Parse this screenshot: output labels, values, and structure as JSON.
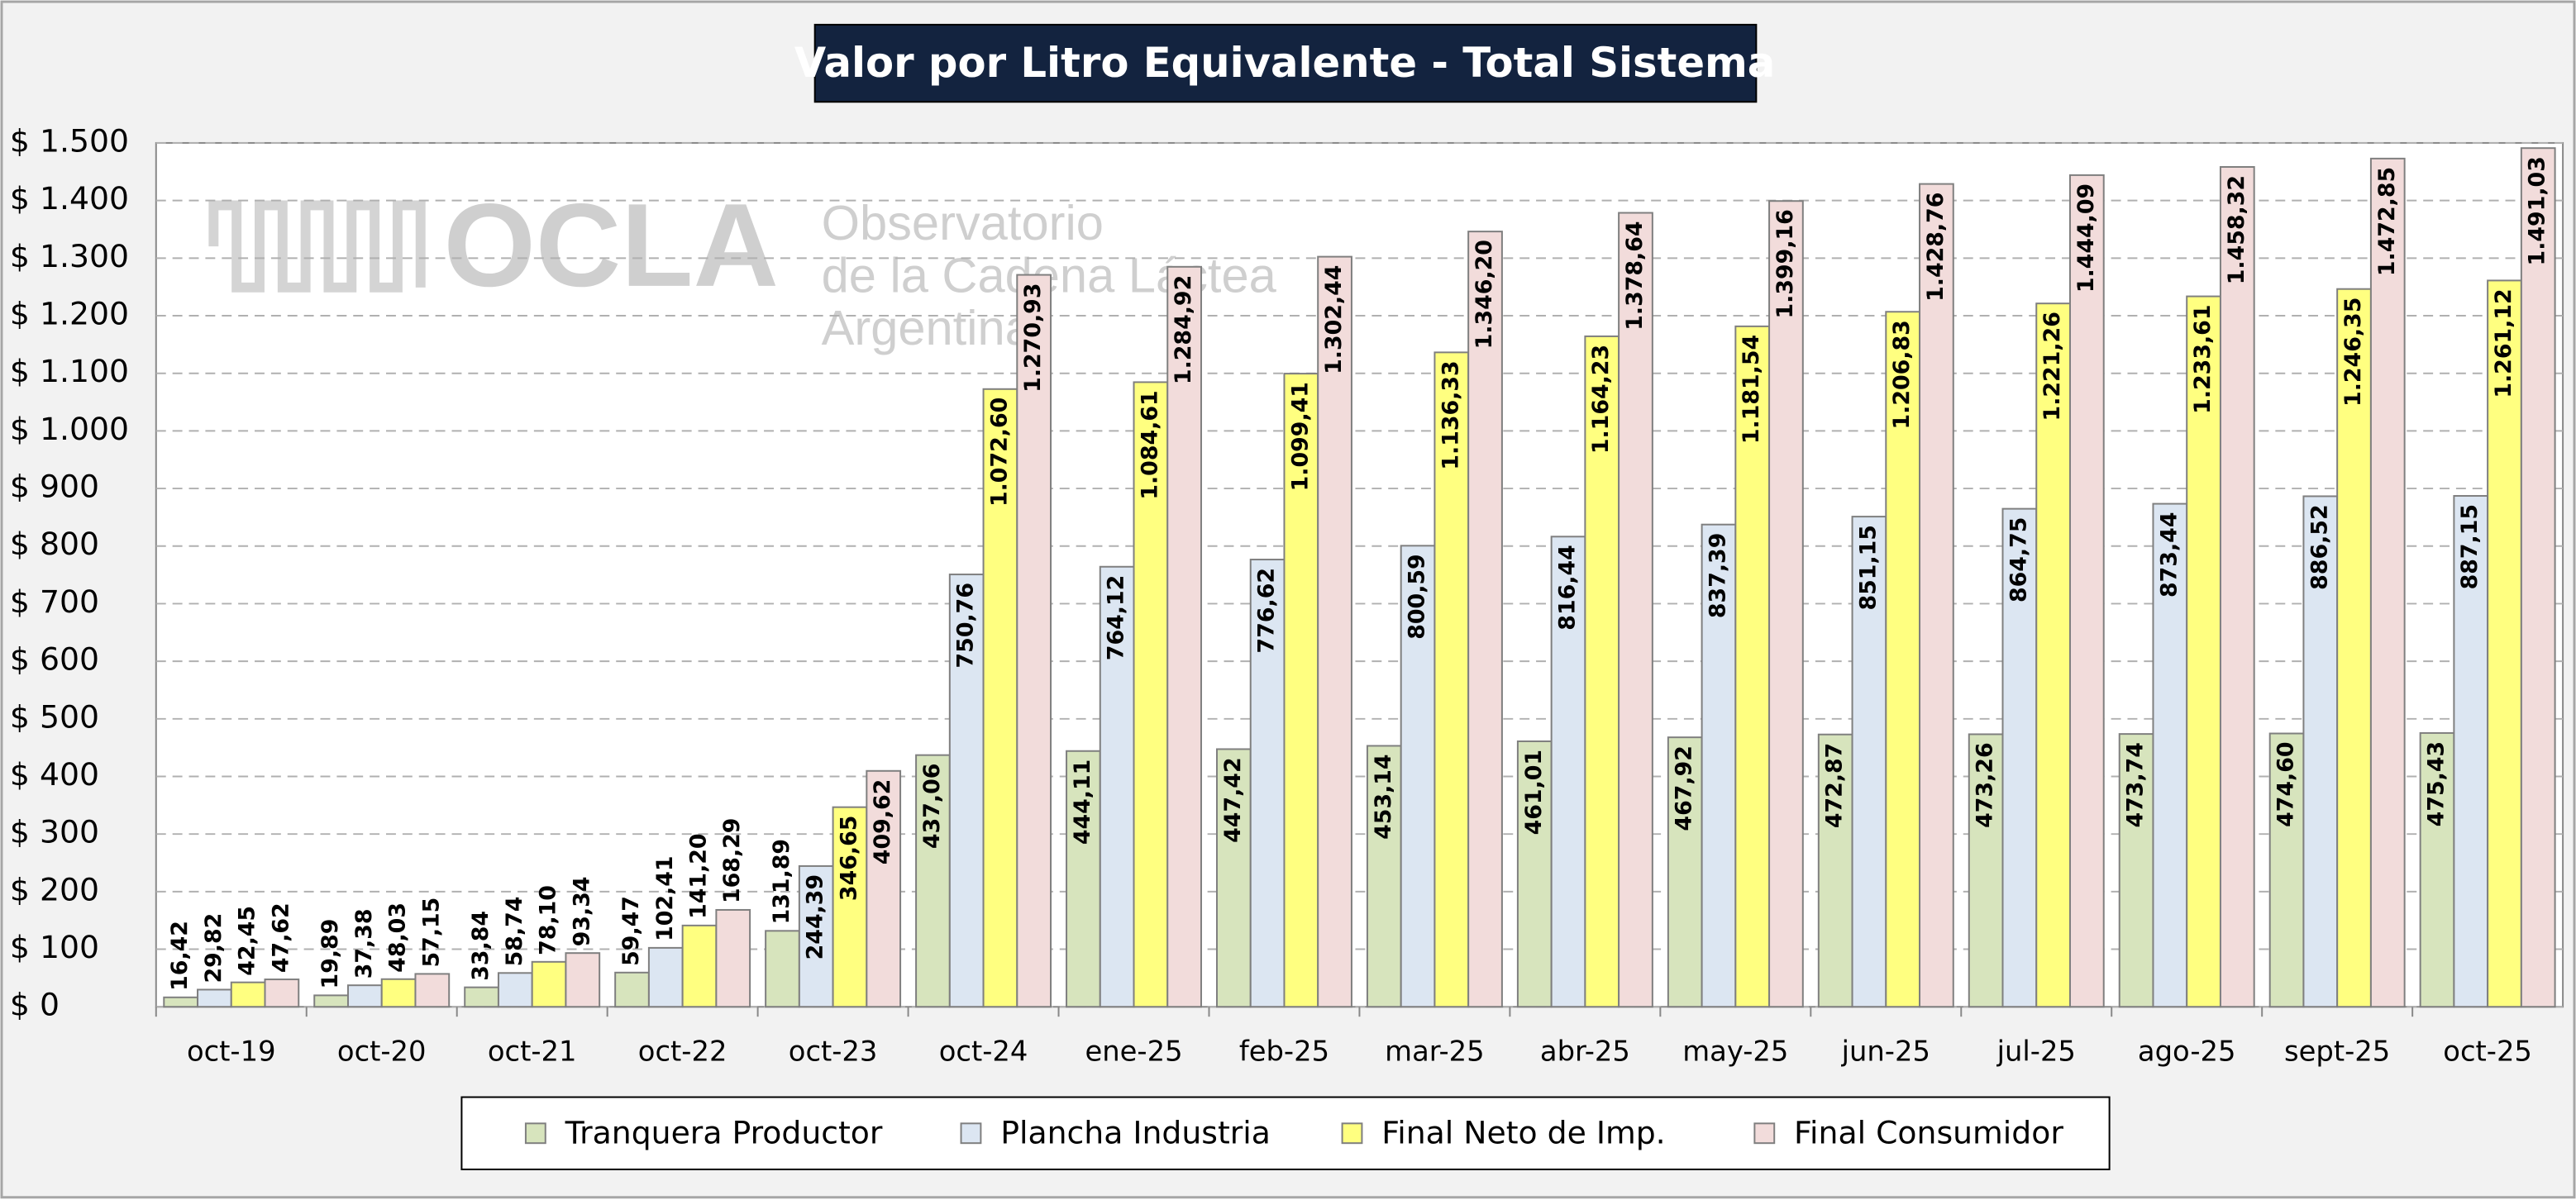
{
  "chart_data": {
    "type": "bar",
    "title": "Valor por Litro Equivalente - Total Sistema",
    "annotations": [
      "OCLA",
      "Observatorio",
      "de la Cadena Láctea",
      "Argentina"
    ],
    "categories": [
      "oct-19",
      "oct-20",
      "oct-21",
      "oct-22",
      "oct-23",
      "oct-24",
      "ene-25",
      "feb-25",
      "mar-25",
      "abr-25",
      "may-25",
      "jun-25",
      "jul-25",
      "ago-25",
      "sept-25",
      "oct-25"
    ],
    "series": [
      {
        "name": "Tranquera Productor",
        "color": "#d7e4bd",
        "values": [
          16.42,
          19.89,
          33.84,
          59.47,
          131.89,
          437.06,
          444.11,
          447.42,
          453.14,
          461.01,
          467.92,
          472.87,
          473.26,
          473.74,
          474.6,
          475.43
        ],
        "value_labels": [
          "16,42",
          "19,89",
          "33,84",
          "59,47",
          "131,89",
          "437,06",
          "444,11",
          "447,42",
          "453,14",
          "461,01",
          "467,92",
          "472,87",
          "473,26",
          "473,74",
          "474,60",
          "475,43"
        ]
      },
      {
        "name": "Plancha Industria",
        "color": "#dce6f2",
        "values": [
          29.82,
          37.38,
          58.74,
          102.41,
          244.39,
          750.76,
          764.12,
          776.62,
          800.59,
          816.44,
          837.39,
          851.15,
          864.75,
          873.44,
          886.52,
          887.15
        ],
        "value_labels": [
          "29,82",
          "37,38",
          "58,74",
          "102,41",
          "244,39",
          "750,76",
          "764,12",
          "776,62",
          "800,59",
          "816,44",
          "837,39",
          "851,15",
          "864,75",
          "873,44",
          "886,52",
          "887,15"
        ]
      },
      {
        "name": "Final Neto de Imp.",
        "color": "#ffff80",
        "values": [
          42.45,
          48.03,
          78.1,
          141.2,
          346.65,
          1072.6,
          1084.61,
          1099.41,
          1136.33,
          1164.23,
          1181.54,
          1206.83,
          1221.26,
          1233.61,
          1246.35,
          1261.12
        ],
        "value_labels": [
          "42,45",
          "48,03",
          "78,10",
          "141,20",
          "346,65",
          "1.072,60",
          "1.084,61",
          "1.099,41",
          "1.136,33",
          "1.164,23",
          "1.181,54",
          "1.206,83",
          "1.221,26",
          "1.233,61",
          "1.246,35",
          "1.261,12"
        ]
      },
      {
        "name": "Final Consumidor",
        "color": "#f2dcdb",
        "values": [
          47.62,
          57.15,
          93.34,
          168.29,
          409.62,
          1270.93,
          1284.92,
          1302.44,
          1346.2,
          1378.64,
          1399.16,
          1428.76,
          1444.09,
          1458.32,
          1472.85,
          1491.03
        ],
        "value_labels": [
          "47,62",
          "57,15",
          "93,34",
          "168,29",
          "409,62",
          "1.270,93",
          "1.284,92",
          "1.302,44",
          "1.346,20",
          "1.378,64",
          "1.399,16",
          "1.428,76",
          "1.444,09",
          "1.458,32",
          "1.472,85",
          "1.491,03"
        ]
      }
    ],
    "ylim": [
      0,
      1500
    ],
    "yticks": [
      {
        "value": 0,
        "label": "$ 0"
      },
      {
        "value": 100,
        "label": "$ 100"
      },
      {
        "value": 200,
        "label": "$ 200"
      },
      {
        "value": 300,
        "label": "$ 300"
      },
      {
        "value": 400,
        "label": "$ 400"
      },
      {
        "value": 500,
        "label": "$ 500"
      },
      {
        "value": 600,
        "label": "$ 600"
      },
      {
        "value": 700,
        "label": "$ 700"
      },
      {
        "value": 800,
        "label": "$ 800"
      },
      {
        "value": 900,
        "label": "$ 900"
      },
      {
        "value": 1000,
        "label": "$ 1.000"
      },
      {
        "value": 1100,
        "label": "$ 1.100"
      },
      {
        "value": 1200,
        "label": "$ 1.200"
      },
      {
        "value": 1300,
        "label": "$ 1.300"
      },
      {
        "value": 1400,
        "label": "$ 1.400"
      },
      {
        "value": 1500,
        "label": "$ 1.500"
      }
    ],
    "grid": true,
    "legend": "bottom"
  }
}
